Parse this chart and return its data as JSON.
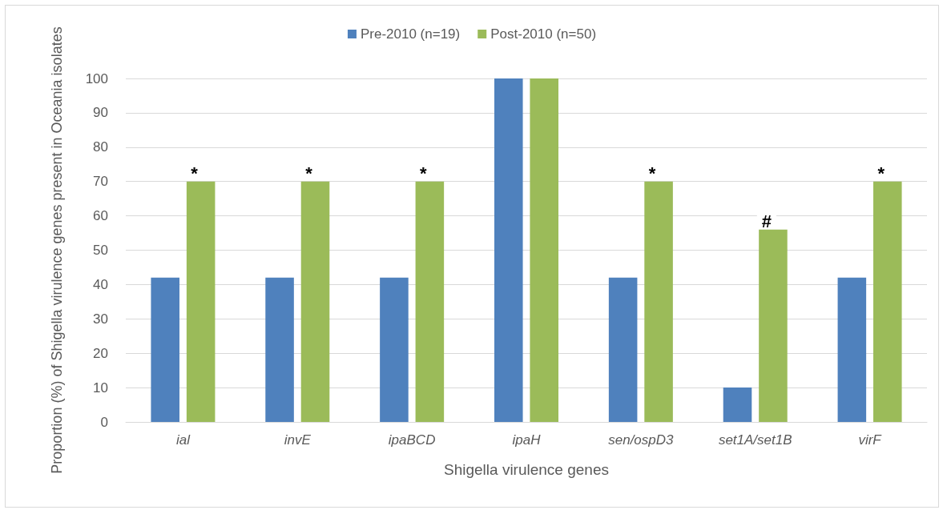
{
  "chart_data": {
    "type": "bar",
    "xlabel": "Shigella virulence genes",
    "ylabel": "Proportion (%) of Shigella virulence genes present in Oceania isolates",
    "categories": [
      "ial",
      "invE",
      "ipaBCD",
      "ipaH",
      "sen/ospD3",
      "set1A/set1B",
      "virF"
    ],
    "series": [
      {
        "name": "Pre-2010 (n=19)",
        "color": "#4f81bd",
        "values": [
          42,
          42,
          42,
          100,
          42,
          10,
          42
        ]
      },
      {
        "name": "Post-2010 (n=50)",
        "color": "#9bbb59",
        "values": [
          70,
          70,
          70,
          100,
          70,
          56,
          70
        ]
      }
    ],
    "ylim": [
      0,
      100
    ],
    "yticks": [
      0,
      10,
      20,
      30,
      40,
      50,
      60,
      70,
      80,
      90,
      100
    ],
    "grid": "y",
    "legend": "top",
    "annotations": [
      {
        "text": "*",
        "x": "ial",
        "y": 70
      },
      {
        "text": "*",
        "x": "invE",
        "y": 70
      },
      {
        "text": "*",
        "x": "ipaBCD",
        "y": 70
      },
      {
        "text": "*",
        "x": "sen/ospD3",
        "y": 70
      },
      {
        "text": "#",
        "x": "set1A/set1B",
        "y": 56
      },
      {
        "text": "*",
        "x": "virF",
        "y": 70
      }
    ]
  }
}
